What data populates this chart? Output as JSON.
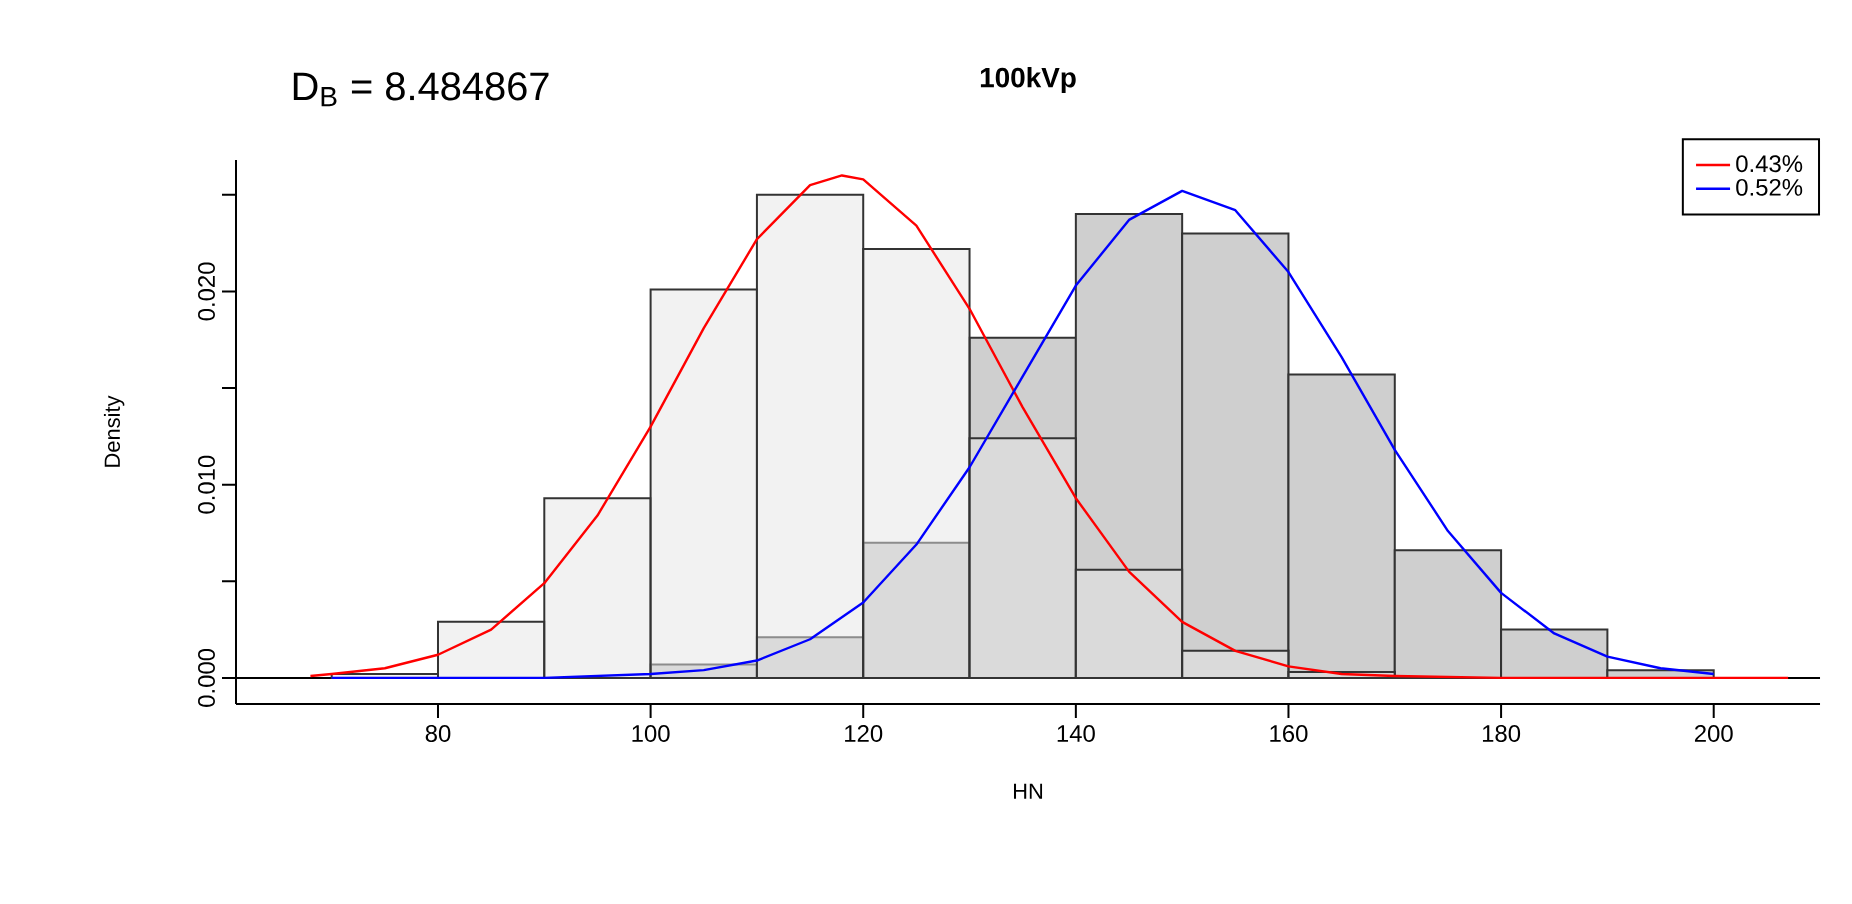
{
  "chart_data": {
    "type": "histogram",
    "title": "100kVp",
    "xlabel": "HN",
    "ylabel": "Density",
    "annotations": [
      "D$_{B}$ = 8.484867"
    ],
    "xlim": [
      61,
      210
    ],
    "ylim": [
      -0.00135,
      0.0268
    ],
    "xticks": [
      80,
      100,
      120,
      140,
      160,
      180,
      200
    ],
    "yticks": [
      {
        "value": 0,
        "label": "0.000"
      },
      {
        "value": 0.005,
        "label": null
      },
      {
        "value": 0.01,
        "label": "0.010"
      },
      {
        "value": 0.015,
        "label": null
      },
      {
        "value": 0.02,
        "label": "0.020"
      },
      {
        "value": 0.025,
        "label": null
      }
    ],
    "grid": false,
    "legend": "top right",
    "marker": "none",
    "ref_lines": [
      {
        "axis": "y",
        "value": 0,
        "color": "#000000"
      }
    ],
    "series": [
      {
        "color": "#cfcfcf",
        "bins": [
          100,
          110,
          120,
          130,
          140,
          150,
          160,
          170,
          180,
          190,
          200
        ],
        "values": [
          0.0007,
          0.0021,
          0.007,
          0.0176,
          0.024,
          0.023,
          0.0157,
          0.0066,
          0.0025,
          0.0004
        ]
      },
      {
        "color": "#e6e6e6",
        "bins": [
          70,
          80,
          90,
          100,
          110,
          120,
          130,
          140,
          150,
          160,
          170
        ],
        "values": [
          0.0002,
          0.0029,
          0.0093,
          0.0201,
          0.025,
          0.0222,
          0.0124,
          0.0056,
          0.0014,
          0.0003
        ]
      },
      {
        "type": "line",
        "name": "0.43%",
        "color": "#ff0000",
        "x": [
          68,
          70,
          75,
          80,
          85,
          90,
          95,
          100,
          105,
          110,
          115,
          118,
          120,
          125,
          130,
          135,
          140,
          145,
          150,
          155,
          160,
          165,
          170,
          180,
          207
        ],
        "values": [
          0.0001,
          0.0002,
          0.0005,
          0.0012,
          0.0025,
          0.0049,
          0.0084,
          0.013,
          0.0181,
          0.0227,
          0.0255,
          0.026,
          0.0258,
          0.0234,
          0.0191,
          0.014,
          0.0093,
          0.0055,
          0.0029,
          0.0014,
          0.0006,
          0.0002,
          0.0001,
          0,
          0
        ]
      },
      {
        "type": "line",
        "name": "0.52%",
        "color": "#0000ff",
        "x": [
          70,
          90,
          100,
          105,
          110,
          115,
          120,
          125,
          130,
          135,
          140,
          145,
          150,
          155,
          160,
          165,
          170,
          175,
          180,
          185,
          190,
          195,
          200
        ],
        "values": [
          0,
          0,
          0.0002,
          0.0004,
          0.0009,
          0.002,
          0.0039,
          0.0069,
          0.0109,
          0.0156,
          0.0203,
          0.0237,
          0.0252,
          0.0242,
          0.021,
          0.0166,
          0.0118,
          0.0076,
          0.0044,
          0.0023,
          0.0011,
          0.0005,
          0.0002
        ]
      }
    ]
  }
}
